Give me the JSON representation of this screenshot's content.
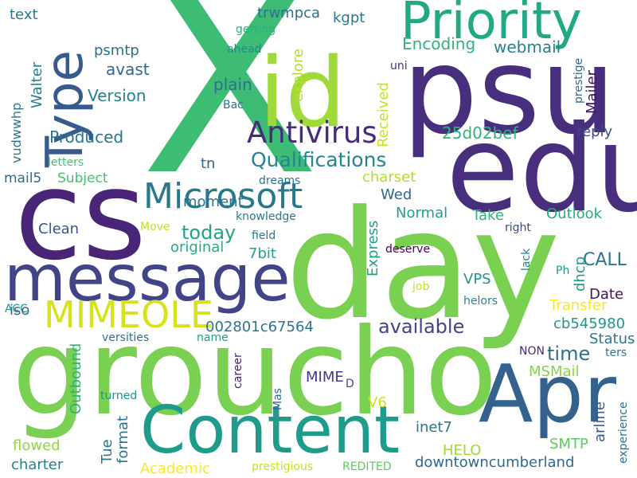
{
  "words": [
    {
      "text": "X",
      "color": "#3dbc74"
    },
    {
      "text": "day",
      "color": "#7ad151"
    },
    {
      "text": "groucho",
      "color": "#7ad151"
    },
    {
      "text": "psu",
      "color": "#472f7d"
    },
    {
      "text": "edu",
      "color": "#472f7d"
    },
    {
      "text": "cs",
      "color": "#482576"
    },
    {
      "text": "id",
      "color": "#a0da39"
    },
    {
      "text": "message",
      "color": "#414487"
    },
    {
      "text": "Content",
      "color": "#1e9b8a"
    },
    {
      "text": "Apr",
      "color": "#33638d"
    },
    {
      "text": "Priority",
      "color": "#22a884"
    },
    {
      "text": "Type",
      "color": "#375b8d"
    },
    {
      "text": "Microsoft",
      "color": "#2a788e"
    },
    {
      "text": "MIMEOLE",
      "color": "#d8e219"
    },
    {
      "text": "Antivirus",
      "color": "#472c7a"
    },
    {
      "text": "Qualifications",
      "color": "#25858e"
    },
    {
      "text": "available",
      "color": "#404688"
    },
    {
      "text": "today",
      "color": "#20a486"
    },
    {
      "text": "time",
      "color": "#2d708e"
    },
    {
      "text": "CALL",
      "color": "#2b758e"
    },
    {
      "text": "Produced",
      "color": "#2c738e"
    },
    {
      "text": "avast",
      "color": "#31688e"
    },
    {
      "text": "Version",
      "color": "#26828e"
    },
    {
      "text": "Encoding",
      "color": "#2fb47c"
    },
    {
      "text": "webmail",
      "color": "#25838e"
    },
    {
      "text": "Received",
      "color": "#cde11d"
    },
    {
      "text": "explore",
      "color": "#b5de2b"
    },
    {
      "text": "plain",
      "color": "#2e6f8e"
    },
    {
      "text": "psmtp",
      "color": "#2c728e"
    },
    {
      "text": "Walter",
      "color": "#27808e"
    },
    {
      "text": "vudwwhp",
      "color": "#2a788e"
    },
    {
      "text": "25d02bef",
      "color": "#2fb47c"
    },
    {
      "text": "reply",
      "color": "#3d4d8a"
    },
    {
      "text": "Mailer",
      "color": "#471164"
    },
    {
      "text": "prestige",
      "color": "#31688e"
    },
    {
      "text": "uni",
      "color": "#46337e"
    },
    {
      "text": "trwmpca",
      "color": "#2c728e"
    },
    {
      "text": "kgpt",
      "color": "#2a768e"
    },
    {
      "text": "getting",
      "color": "#2ab07f"
    },
    {
      "text": "ahead",
      "color": "#23898e"
    },
    {
      "text": "Bac",
      "color": "#2c728e"
    },
    {
      "text": "text",
      "color": "#2a788e"
    },
    {
      "text": "moment",
      "color": "#2c738e"
    },
    {
      "text": "tn",
      "color": "#33638d"
    },
    {
      "text": "Subject",
      "color": "#46c06f"
    },
    {
      "text": "mail5",
      "color": "#31688e"
    },
    {
      "text": "letters",
      "color": "#46c06f"
    },
    {
      "text": "dreams",
      "color": "#2c728e"
    },
    {
      "text": "charset",
      "color": "#b5de2b"
    },
    {
      "text": "Wed",
      "color": "#31688e"
    },
    {
      "text": "Normal",
      "color": "#1f9f88"
    },
    {
      "text": "Take",
      "color": "#2fb47c"
    },
    {
      "text": "Outlook",
      "color": "#26ad81"
    },
    {
      "text": "knowledge",
      "color": "#2a788e"
    },
    {
      "text": "Clean",
      "color": "#3b528b"
    },
    {
      "text": "Move",
      "color": "#c8e020"
    },
    {
      "text": "field",
      "color": "#2a788e"
    },
    {
      "text": "original",
      "color": "#25ab82"
    },
    {
      "text": "7bit",
      "color": "#1fa088"
    },
    {
      "text": "Express",
      "color": "#1fa088"
    },
    {
      "text": "deserve",
      "color": "#440154"
    },
    {
      "text": "right",
      "color": "#3f4788"
    },
    {
      "text": "lack",
      "color": "#26828e"
    },
    {
      "text": "dhcp",
      "color": "#1e9b8a"
    },
    {
      "text": "Ph",
      "color": "#1f958b"
    },
    {
      "text": "VPS",
      "color": "#1f988b"
    },
    {
      "text": "job",
      "color": "#c2df23"
    },
    {
      "text": "Date",
      "color": "#471063"
    },
    {
      "text": "Transfer",
      "color": "#fde725"
    },
    {
      "text": "helors",
      "color": "#25858e"
    },
    {
      "text": "ACC",
      "color": "#1f978b"
    },
    {
      "text": "iso",
      "color": "#2f6c8e"
    },
    {
      "text": "002801c67564",
      "color": "#2c728e"
    },
    {
      "text": "cb545980",
      "color": "#1f958b"
    },
    {
      "text": "Status",
      "color": "#2a788e"
    },
    {
      "text": "versities",
      "color": "#2d708e"
    },
    {
      "text": "name",
      "color": "#1fa088"
    },
    {
      "text": "NON",
      "color": "#482878"
    },
    {
      "text": "ters",
      "color": "#2d708e"
    },
    {
      "text": "Outbound",
      "color": "#2ab07f"
    },
    {
      "text": "MIME",
      "color": "#443983"
    },
    {
      "text": "MSMail",
      "color": "#84d44b"
    },
    {
      "text": "arline",
      "color": "#375a8c"
    },
    {
      "text": "career",
      "color": "#481f70"
    },
    {
      "text": "turned",
      "color": "#21918c"
    },
    {
      "text": "Mas",
      "color": "#31688e"
    },
    {
      "text": "D",
      "color": "#3e4a89"
    },
    {
      "text": "format",
      "color": "#2c728e"
    },
    {
      "text": "Tue",
      "color": "#2c728e"
    },
    {
      "text": "V6",
      "color": "#cde11d"
    },
    {
      "text": "inet7",
      "color": "#2c728e"
    },
    {
      "text": "HELO",
      "color": "#a0da39"
    },
    {
      "text": "SMTP",
      "color": "#5ec962"
    },
    {
      "text": "flowed",
      "color": "#90d743"
    },
    {
      "text": "charter",
      "color": "#27808e"
    },
    {
      "text": "Academic",
      "color": "#fde725"
    },
    {
      "text": "prestigious",
      "color": "#c8e020"
    },
    {
      "text": "REDITED",
      "color": "#5ec962"
    },
    {
      "text": "downtowncumberland",
      "color": "#31688e"
    },
    {
      "text": "experience",
      "color": "#2c728e"
    }
  ]
}
